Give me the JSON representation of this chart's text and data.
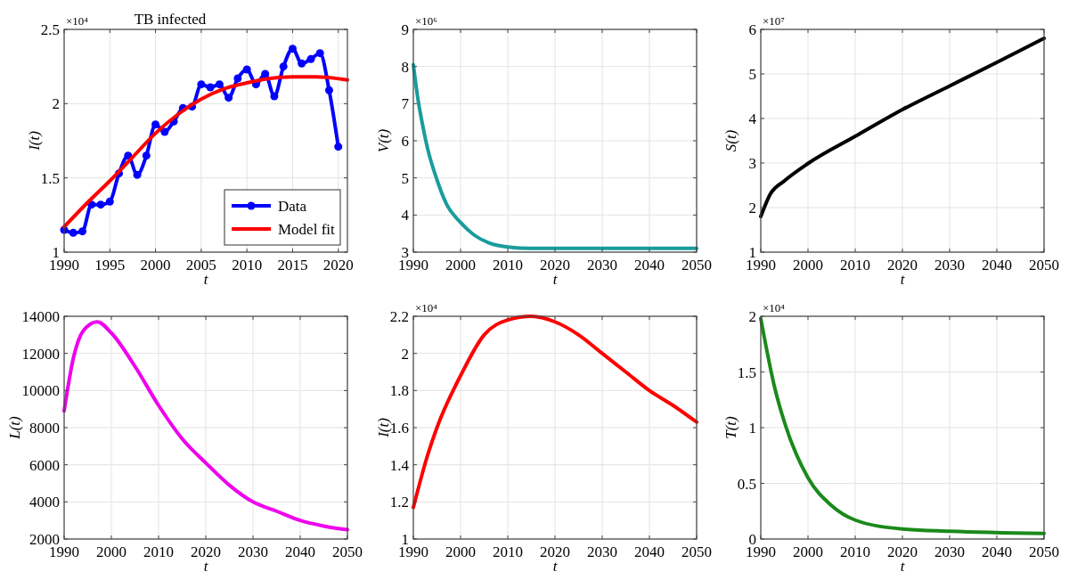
{
  "chart_data": [
    {
      "type": "line",
      "title": "TB infected",
      "xlabel": "t",
      "ylabel": "I(t)",
      "annotations": [
        "×10⁴"
      ],
      "xlim": [
        1990,
        2021
      ],
      "xticks": [
        1990,
        1995,
        2000,
        2005,
        2010,
        2015,
        2020
      ],
      "ylim": [
        1,
        2.5
      ],
      "yticks": [
        1,
        1.5,
        2,
        2.5
      ],
      "grid": true,
      "legend": "bottom right",
      "series": [
        {
          "name": "Data",
          "color": "#0000ff",
          "marker": "circle",
          "x": [
            1990,
            1991,
            1992,
            1993,
            1994,
            1995,
            1996,
            1997,
            1998,
            1999,
            2000,
            2001,
            2002,
            2003,
            2004,
            2005,
            2006,
            2007,
            2008,
            2009,
            2010,
            2011,
            2012,
            2013,
            2014,
            2015,
            2016,
            2017,
            2018,
            2019,
            2020
          ],
          "values": [
            1.15,
            1.13,
            1.14,
            1.32,
            1.32,
            1.34,
            1.53,
            1.65,
            1.52,
            1.65,
            1.86,
            1.81,
            1.88,
            1.97,
            1.98,
            2.13,
            2.11,
            2.13,
            2.04,
            2.17,
            2.23,
            2.13,
            2.2,
            2.05,
            2.25,
            2.37,
            2.27,
            2.3,
            2.34,
            2.09,
            1.71
          ]
        },
        {
          "name": "Model fit",
          "color": "#ff0000",
          "marker": "none",
          "x": [
            1990,
            1992.5,
            1995,
            1997.5,
            2000,
            2002.5,
            2005,
            2007.5,
            2010,
            2012.5,
            2015,
            2017.5,
            2021
          ],
          "values": [
            1.17,
            1.33,
            1.48,
            1.64,
            1.8,
            1.93,
            2.03,
            2.1,
            2.14,
            2.17,
            2.18,
            2.18,
            2.16
          ]
        }
      ]
    },
    {
      "type": "line",
      "xlabel": "t",
      "ylabel": "V(t)",
      "annotations": [
        "×10⁶"
      ],
      "xlim": [
        1990,
        2050
      ],
      "xticks": [
        1990,
        2000,
        2010,
        2020,
        2030,
        2040,
        2050
      ],
      "ylim": [
        3,
        9
      ],
      "yticks": [
        3,
        4,
        5,
        6,
        7,
        8,
        9
      ],
      "grid": true,
      "series": [
        {
          "color": "#1a9c9c",
          "x": [
            1990,
            1991,
            1992,
            1993,
            1995,
            1997,
            2000,
            2003,
            2006,
            2010,
            2015,
            2050
          ],
          "values": [
            8.05,
            7.1,
            6.4,
            5.8,
            4.95,
            4.3,
            3.8,
            3.45,
            3.25,
            3.14,
            3.1,
            3.1
          ]
        }
      ]
    },
    {
      "type": "line",
      "xlabel": "t",
      "ylabel": "S(t)",
      "annotations": [
        "×10⁷"
      ],
      "xlim": [
        1990,
        2050
      ],
      "xticks": [
        1990,
        2000,
        2010,
        2020,
        2030,
        2040,
        2050
      ],
      "ylim": [
        1,
        6
      ],
      "yticks": [
        1,
        2,
        3,
        4,
        5,
        6
      ],
      "grid": true,
      "series": [
        {
          "color": "#000000",
          "x": [
            1990,
            1992,
            1995,
            2000,
            2010,
            2020,
            2030,
            2040,
            2050
          ],
          "values": [
            1.8,
            2.3,
            2.6,
            2.99,
            3.6,
            4.2,
            4.73,
            5.26,
            5.8
          ]
        }
      ]
    },
    {
      "type": "line",
      "xlabel": "t",
      "ylabel": "L(t)",
      "xlim": [
        1990,
        2050
      ],
      "xticks": [
        1990,
        2000,
        2010,
        2020,
        2030,
        2040,
        2050
      ],
      "ylim": [
        2000,
        14000
      ],
      "yticks": [
        2000,
        4000,
        6000,
        8000,
        10000,
        12000,
        14000
      ],
      "grid": true,
      "series": [
        {
          "color": "#ee00ee",
          "x": [
            1990,
            1992,
            1994,
            1997,
            2000,
            2005,
            2010,
            2015,
            2020,
            2025,
            2030,
            2035,
            2040,
            2045,
            2050
          ],
          "values": [
            8900,
            11800,
            13200,
            13700,
            13100,
            11300,
            9200,
            7400,
            6100,
            4900,
            4000,
            3500,
            3000,
            2700,
            2500
          ]
        }
      ]
    },
    {
      "type": "line",
      "xlabel": "t",
      "ylabel": "I(t)",
      "annotations": [
        "×10⁴"
      ],
      "xlim": [
        1990,
        2050
      ],
      "xticks": [
        1990,
        2000,
        2010,
        2020,
        2030,
        2040,
        2050
      ],
      "ylim": [
        1,
        2.2
      ],
      "yticks": [
        1,
        1.2,
        1.4,
        1.6,
        1.8,
        2,
        2.2
      ],
      "grid": true,
      "series": [
        {
          "color": "#ff0000",
          "x": [
            1990,
            1993,
            1995,
            2000,
            2005,
            2010,
            2015,
            2020,
            2025,
            2030,
            2035,
            2040,
            2045,
            2050
          ],
          "values": [
            1.17,
            1.45,
            1.6,
            1.88,
            2.1,
            2.18,
            2.2,
            2.17,
            2.1,
            2.0,
            1.9,
            1.8,
            1.72,
            1.63
          ]
        }
      ]
    },
    {
      "type": "line",
      "xlabel": "t",
      "ylabel": "T(t)",
      "annotations": [
        "×10⁴"
      ],
      "xlim": [
        1990,
        2050
      ],
      "xticks": [
        1990,
        2000,
        2010,
        2020,
        2030,
        2040,
        2050
      ],
      "ylim": [
        0,
        2
      ],
      "yticks": [
        0,
        0.5,
        1,
        1.5,
        2
      ],
      "grid": true,
      "series": [
        {
          "color": "#1a8a1a",
          "x": [
            1990,
            1993,
            1995,
            2000,
            2005,
            2010,
            2020,
            2030,
            2050
          ],
          "values": [
            1.98,
            1.35,
            1.05,
            0.55,
            0.3,
            0.17,
            0.09,
            0.07,
            0.05
          ]
        }
      ]
    }
  ]
}
